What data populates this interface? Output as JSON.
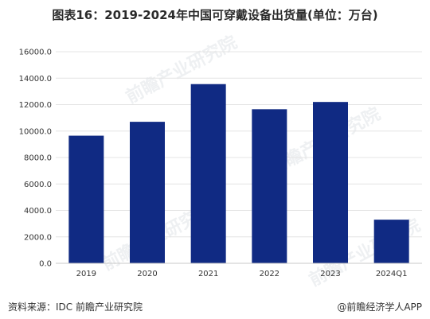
{
  "title": "图表16：2019-2024年中国可穿戴设备出货量(单位：万台)",
  "source": "资料来源：IDC 前瞻产业研究院",
  "brand": "@前瞻经济学人APP",
  "watermark": "前瞻产业研究院",
  "colors": {
    "bar": "#102a83",
    "grid": "#e4e4e4",
    "text": "#333333"
  },
  "chart_data": {
    "type": "bar",
    "categories": [
      "2019",
      "2020",
      "2021",
      "2022",
      "2023",
      "2024Q1"
    ],
    "values": [
      9650,
      10700,
      13550,
      11650,
      12200,
      3300
    ],
    "ylim": [
      0,
      16000
    ],
    "yticks": [
      "0.0",
      "2000.0",
      "4000.0",
      "6000.0",
      "8000.0",
      "10000.0",
      "12000.0",
      "14000.0",
      "16000.0"
    ],
    "grid": true,
    "legend": "none"
  }
}
